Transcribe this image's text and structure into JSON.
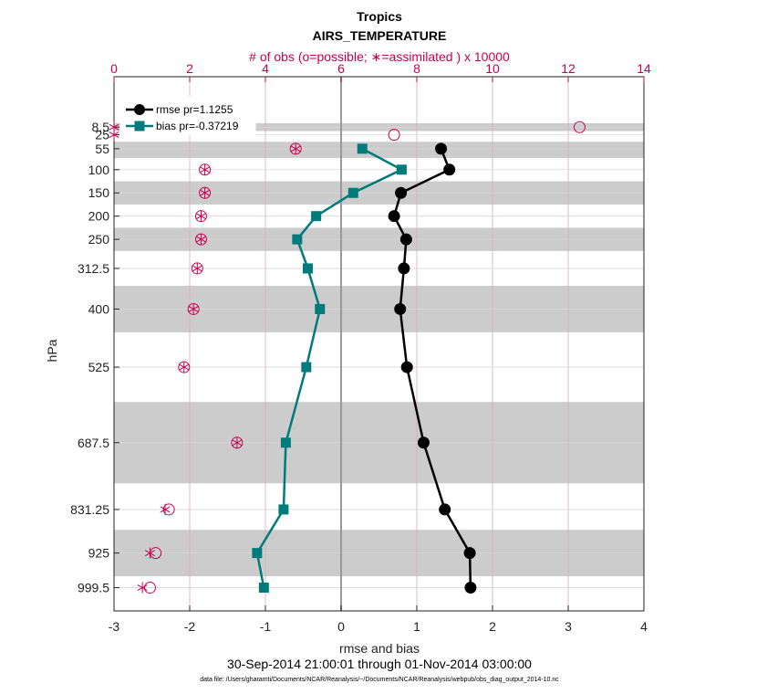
{
  "chart_data": {
    "type": "line",
    "title": "Tropics",
    "subtitle": "AIRS_TEMPERATURE",
    "top_axis_label": "# of obs (o=possible; ∗=assimilated ) x 10000",
    "xlabel": "rmse and bias",
    "ylabel": "hPa",
    "date_range": "30-Sep-2014 21:00:01 through 01-Nov-2014 03:00:00",
    "data_file": "data file: /Users/gharamti/Documents/NCAR/Reanalysis/~/Documents/NCAR/Reanalysis/webpub/obs_diag_output_2014-10.nc",
    "xlim": [
      -3,
      4
    ],
    "x_ticks": [
      -3,
      -2,
      -1,
      0,
      1,
      2,
      3,
      4
    ],
    "top_xlim": [
      0,
      14
    ],
    "top_ticks": [
      0,
      2,
      4,
      6,
      8,
      10,
      12,
      14
    ],
    "ylim": [
      1049.5,
      -100
    ],
    "levels": [
      "8.5",
      "25",
      "55",
      "100",
      "150",
      "200",
      "250",
      "312.5",
      "400",
      "525",
      "687.5",
      "831.25",
      "925",
      "999.5"
    ],
    "level_values": [
      8.5,
      25,
      55,
      100,
      150,
      200,
      250,
      312.5,
      400,
      525,
      687.5,
      831.25,
      925,
      999.5
    ],
    "shaded_bands": [
      [
        0,
        17
      ],
      [
        40,
        75
      ],
      [
        125,
        175
      ],
      [
        225,
        275
      ],
      [
        350,
        450
      ],
      [
        600,
        775
      ],
      [
        875,
        975
      ]
    ],
    "legend_position": "top-left",
    "grid": true,
    "series": [
      {
        "name": "rmse pr=1.1255",
        "color": "#000000",
        "marker": "circle",
        "x": [
          null,
          null,
          1.32,
          1.43,
          0.79,
          0.7,
          0.86,
          0.83,
          0.78,
          0.87,
          1.09,
          1.37,
          1.7,
          1.71
        ],
        "y": [
          8.5,
          25,
          55,
          100,
          150,
          200,
          250,
          312.5,
          400,
          525,
          687.5,
          831.25,
          925,
          999.5
        ]
      },
      {
        "name": "bias pr=-0.37219",
        "color": "#007b7b",
        "marker": "square",
        "x": [
          null,
          null,
          0.28,
          0.8,
          0.16,
          -0.33,
          -0.58,
          -0.44,
          -0.28,
          -0.46,
          -0.73,
          -0.76,
          -1.11,
          -1.02
        ],
        "y": [
          8.5,
          25,
          55,
          100,
          150,
          200,
          250,
          312.5,
          400,
          525,
          687.5,
          831.25,
          925,
          999.5
        ]
      }
    ],
    "obs_possible": {
      "color": "#c8004f",
      "marker": "open-circle",
      "x": [
        12.3,
        7.4,
        4.8,
        2.4,
        2.4,
        2.3,
        2.3,
        2.2,
        2.1,
        1.85,
        3.25,
        1.45,
        1.1,
        0.95
      ],
      "y": [
        8.5,
        25,
        55,
        100,
        150,
        200,
        250,
        312.5,
        400,
        525,
        687.5,
        831.25,
        925,
        999.5
      ]
    },
    "obs_assimilated": {
      "color": "#c8004f",
      "marker": "asterisk",
      "x": [
        0.0,
        0.0,
        4.8,
        2.4,
        2.4,
        2.3,
        2.3,
        2.2,
        2.1,
        1.85,
        3.25,
        1.35,
        0.95,
        0.75
      ],
      "y": [
        8.5,
        25,
        55,
        100,
        150,
        200,
        250,
        312.5,
        400,
        525,
        687.5,
        831.25,
        925,
        999.5
      ]
    }
  }
}
